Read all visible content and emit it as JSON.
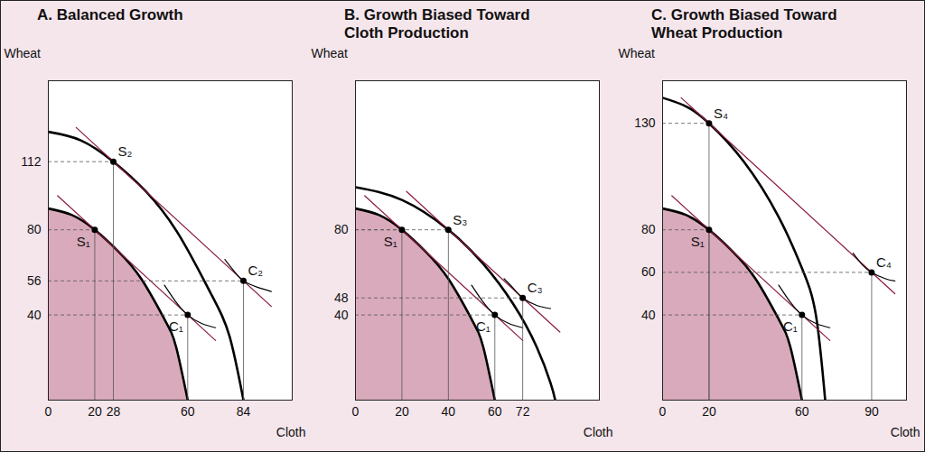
{
  "chart_data": [
    {
      "type": "line",
      "title": "A. Balanced Growth",
      "x_label": "Cloth",
      "y_label": "Wheat",
      "xlim": [
        0,
        105
      ],
      "ylim": [
        0,
        150
      ],
      "xticks": [
        0,
        20,
        28,
        60,
        84
      ],
      "yticks": [
        40,
        56,
        80,
        112
      ],
      "series": [
        {
          "type": "area",
          "color": "#d9aabb",
          "line_style": "thick",
          "values": [
            [
              0,
              90
            ],
            [
              10,
              87
            ],
            [
              20,
              80
            ],
            [
              30,
              70
            ],
            [
              40,
              57
            ],
            [
              50,
              38
            ],
            [
              55,
              25
            ],
            [
              60,
              0
            ]
          ]
        },
        {
          "type": "line",
          "color": "#000000",
          "line_style": "thick",
          "values": [
            [
              0,
              126
            ],
            [
              14,
              122
            ],
            [
              28,
              112
            ],
            [
              42,
              98
            ],
            [
              56,
              78
            ],
            [
              70,
              50
            ],
            [
              78,
              30
            ],
            [
              84,
              0
            ]
          ]
        },
        {
          "type": "line",
          "color": "#8b1a3a",
          "line_style": "thin",
          "values": [
            [
              4,
              96
            ],
            [
              72,
              28
            ]
          ]
        },
        {
          "type": "line",
          "color": "#8b1a3a",
          "line_style": "thin",
          "values": [
            [
              12,
              128
            ],
            [
              96,
              44
            ]
          ]
        },
        {
          "type": "line",
          "color": "#000000",
          "line_style": "thin",
          "values": [
            [
              50,
              54
            ],
            [
              55,
              46
            ],
            [
              60,
              40
            ],
            [
              66,
              36
            ],
            [
              72,
              34
            ]
          ]
        },
        {
          "type": "line",
          "color": "#000000",
          "line_style": "thin",
          "values": [
            [
              76,
              66
            ],
            [
              80,
              60.5
            ],
            [
              84,
              56
            ],
            [
              90,
              53
            ],
            [
              96,
              51
            ]
          ]
        }
      ],
      "points": [
        {
          "label": "S₁",
          "x": 20,
          "y": 80
        },
        {
          "label": "C₁",
          "x": 60,
          "y": 40
        },
        {
          "label": "S₂",
          "x": 28,
          "y": 112
        },
        {
          "label": "C₂",
          "x": 84,
          "y": 56
        }
      ],
      "marker": "dot"
    },
    {
      "type": "line",
      "title": "B. Growth Biased Toward\nCloth Production",
      "x_label": "Cloth",
      "y_label": "Wheat",
      "xlim": [
        0,
        105
      ],
      "ylim": [
        0,
        150
      ],
      "xticks": [
        0,
        20,
        40,
        60,
        72
      ],
      "yticks": [
        40,
        48,
        80
      ],
      "series": [
        {
          "type": "area",
          "color": "#d9aabb",
          "line_style": "thick",
          "values": [
            [
              0,
              90
            ],
            [
              10,
              87
            ],
            [
              20,
              80
            ],
            [
              30,
              70
            ],
            [
              40,
              57
            ],
            [
              50,
              38
            ],
            [
              55,
              25
            ],
            [
              60,
              0
            ]
          ]
        },
        {
          "type": "line",
          "color": "#000000",
          "line_style": "thick",
          "values": [
            [
              0,
              100
            ],
            [
              20,
              94
            ],
            [
              40,
              80
            ],
            [
              55,
              64
            ],
            [
              68,
              45
            ],
            [
              78,
              25
            ],
            [
              84,
              8
            ],
            [
              86,
              0
            ]
          ]
        },
        {
          "type": "line",
          "color": "#8b1a3a",
          "line_style": "thin",
          "values": [
            [
              4,
              96
            ],
            [
              72,
              28
            ]
          ]
        },
        {
          "type": "line",
          "color": "#8b1a3a",
          "line_style": "thin",
          "values": [
            [
              22,
              98
            ],
            [
              88,
              32
            ]
          ]
        },
        {
          "type": "line",
          "color": "#000000",
          "line_style": "thin",
          "values": [
            [
              50,
              54
            ],
            [
              55,
              46
            ],
            [
              60,
              40
            ],
            [
              66,
              36
            ],
            [
              72,
              34
            ]
          ]
        },
        {
          "type": "line",
          "color": "#000000",
          "line_style": "thin",
          "values": [
            [
              64,
              57
            ],
            [
              68,
              52.5
            ],
            [
              72,
              48
            ],
            [
              78,
              44.5
            ],
            [
              84,
              43
            ]
          ]
        }
      ],
      "points": [
        {
          "label": "S₁",
          "x": 20,
          "y": 80
        },
        {
          "label": "C₁",
          "x": 60,
          "y": 40
        },
        {
          "label": "S₃",
          "x": 40,
          "y": 80
        },
        {
          "label": "C₃",
          "x": 72,
          "y": 48
        }
      ],
      "marker": "dot"
    },
    {
      "type": "line",
      "title": "C. Growth Biased Toward\nWheat Production",
      "x_label": "Cloth",
      "y_label": "Wheat",
      "xlim": [
        0,
        105
      ],
      "ylim": [
        0,
        150
      ],
      "xticks": [
        0,
        20,
        60,
        90
      ],
      "yticks": [
        40,
        60,
        80,
        130
      ],
      "series": [
        {
          "type": "area",
          "color": "#d9aabb",
          "line_style": "thick",
          "values": [
            [
              0,
              90
            ],
            [
              10,
              87
            ],
            [
              20,
              80
            ],
            [
              30,
              70
            ],
            [
              40,
              57
            ],
            [
              50,
              38
            ],
            [
              55,
              25
            ],
            [
              60,
              0
            ]
          ]
        },
        {
          "type": "line",
          "color": "#000000",
          "line_style": "thick",
          "values": [
            [
              0,
              142
            ],
            [
              10,
              138
            ],
            [
              20,
              130
            ],
            [
              35,
              112
            ],
            [
              50,
              86
            ],
            [
              60,
              62
            ],
            [
              66,
              40
            ],
            [
              70,
              0
            ]
          ]
        },
        {
          "type": "line",
          "color": "#8b1a3a",
          "line_style": "thin",
          "values": [
            [
              4,
              96
            ],
            [
              72,
              28
            ]
          ]
        },
        {
          "type": "line",
          "color": "#8b1a3a",
          "line_style": "thin",
          "values": [
            [
              8,
              142
            ],
            [
              100,
              50
            ]
          ]
        },
        {
          "type": "line",
          "color": "#000000",
          "line_style": "thin",
          "values": [
            [
              50,
              54
            ],
            [
              55,
              46
            ],
            [
              60,
              40
            ],
            [
              66,
              36
            ],
            [
              72,
              34
            ]
          ]
        },
        {
          "type": "line",
          "color": "#000000",
          "line_style": "thin",
          "values": [
            [
              82,
              69
            ],
            [
              86,
              63.5
            ],
            [
              90,
              60
            ],
            [
              96,
              57
            ],
            [
              100,
              56
            ]
          ]
        }
      ],
      "points": [
        {
          "label": "S₁",
          "x": 20,
          "y": 80
        },
        {
          "label": "C₁",
          "x": 60,
          "y": 40
        },
        {
          "label": "S₄",
          "x": 20,
          "y": 130
        },
        {
          "label": "C₄",
          "x": 90,
          "y": 60
        }
      ],
      "marker": "dot"
    }
  ]
}
